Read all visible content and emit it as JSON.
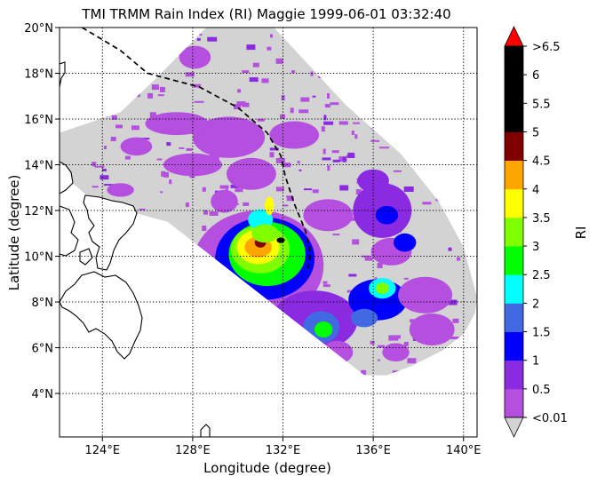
{
  "figure": {
    "title": "TMI TRMM Rain Index (RI) Maggie 1999-06-01 03:32:40",
    "xlabel": "Longitude (degree)",
    "ylabel": "Latitude (degree)",
    "colorbar_label": "RI"
  },
  "map": {
    "lon_range": [
      122.1,
      140.6
    ],
    "lat_range": [
      2.1,
      20.0
    ],
    "gridlines": "dotted",
    "x_ticks": [
      {
        "value": 124,
        "label": "124°E"
      },
      {
        "value": 128,
        "label": "128°E"
      },
      {
        "value": 132,
        "label": "132°E"
      },
      {
        "value": 136,
        "label": "136°E"
      },
      {
        "value": 140,
        "label": "140°E"
      }
    ],
    "y_ticks": [
      {
        "value": 4,
        "label": "4°N"
      },
      {
        "value": 6,
        "label": "6°N"
      },
      {
        "value": 8,
        "label": "8°N"
      },
      {
        "value": 10,
        "label": "10°N"
      },
      {
        "value": 12,
        "label": "12°N"
      },
      {
        "value": 14,
        "label": "14°N"
      },
      {
        "value": 16,
        "label": "16°N"
      },
      {
        "value": 18,
        "label": "18°N"
      },
      {
        "value": 20,
        "label": "20°N"
      }
    ],
    "swath_color": "#d3d3d3",
    "track": {
      "style": "dashed",
      "color": "#000000",
      "points": [
        [
          123.1,
          20.0
        ],
        [
          124.8,
          19.0
        ],
        [
          126.0,
          18.0
        ],
        [
          128.3,
          17.4
        ],
        [
          130.0,
          16.5
        ],
        [
          131.3,
          15.4
        ],
        [
          131.9,
          14.4
        ],
        [
          132.1,
          13.5
        ],
        [
          132.5,
          12.3
        ],
        [
          133.0,
          11.1
        ],
        [
          133.2,
          10.2
        ],
        [
          133.1,
          9.3
        ]
      ]
    }
  },
  "chart_data": {
    "type": "heatmap",
    "title": "TMI TRMM Rain Index (RI) Maggie 1999-06-01 03:32:40",
    "xlabel": "Longitude (degree)",
    "ylabel": "Latitude (degree)",
    "xlim": [
      122.1,
      140.6
    ],
    "ylim": [
      2.1,
      20.0
    ],
    "colorbar": {
      "label": "RI",
      "extend": "both",
      "levels": [
        "<0.01",
        "0.5",
        "1",
        "1.5",
        "2",
        "2.5",
        "3",
        "3.5",
        "4",
        "4.5",
        "5",
        "5.5",
        "6",
        ">6.5"
      ],
      "colors": [
        "#b44fdf",
        "#8a2be2",
        "#0000ff",
        "#4169e1",
        "#00ffff",
        "#00ff00",
        "#7fff00",
        "#ffff00",
        "#ffa500",
        "#800000",
        "#000000",
        "#000000",
        "#000000"
      ],
      "under_color": "#d3d3d3",
      "over_color": "#ff0000"
    },
    "swath_outline": [
      [
        122.1,
        15.4
      ],
      [
        124.8,
        16.3
      ],
      [
        126.4,
        17.8
      ],
      [
        127.8,
        19.2
      ],
      [
        128.6,
        20.0
      ],
      [
        131.6,
        20.0
      ],
      [
        133.3,
        18.2
      ],
      [
        134.8,
        16.6
      ],
      [
        137.2,
        14.5
      ],
      [
        138.9,
        12.4
      ],
      [
        140.0,
        10.4
      ],
      [
        140.6,
        8.2
      ],
      [
        140.5,
        7.5
      ],
      [
        140.0,
        6.6
      ],
      [
        139.1,
        5.9
      ],
      [
        137.7,
        5.2
      ],
      [
        136.6,
        4.8
      ],
      [
        135.6,
        4.8
      ],
      [
        126.9,
        11.5
      ],
      [
        124.7,
        12.1
      ],
      [
        123.5,
        12.5
      ],
      [
        122.1,
        13.7
      ]
    ],
    "rain_cells": [
      {
        "lon": 130.9,
        "lat": 9.6,
        "rlon": 2.9,
        "rlat": 2.4,
        "ri": 0.4
      },
      {
        "lon": 131.2,
        "lat": 9.9,
        "rlon": 2.2,
        "rlat": 1.8,
        "ri": 1.2
      },
      {
        "lon": 131.3,
        "lat": 10.1,
        "rlon": 1.7,
        "rlat": 1.4,
        "ri": 2.6
      },
      {
        "lon": 131.0,
        "lat": 10.3,
        "rlon": 1.3,
        "rlat": 1.05,
        "ri": 3.2
      },
      {
        "lon": 130.9,
        "lat": 10.4,
        "rlon": 0.95,
        "rlat": 0.75,
        "ri": 3.7
      },
      {
        "lon": 130.9,
        "lat": 10.4,
        "rlon": 0.6,
        "rlat": 0.45,
        "ri": 4.2
      },
      {
        "lon": 131.0,
        "lat": 10.6,
        "rlon": 0.25,
        "rlat": 0.22,
        "ri": 4.8
      },
      {
        "lon": 131.9,
        "lat": 10.7,
        "rlon": 0.18,
        "rlat": 0.12,
        "ri": 5.2
      },
      {
        "lon": 131.0,
        "lat": 11.6,
        "rlon": 0.55,
        "rlat": 0.45,
        "ri": 2.1
      },
      {
        "lon": 131.4,
        "lat": 12.2,
        "rlon": 0.2,
        "rlat": 0.4,
        "ri": 3.6
      },
      {
        "lon": 131.2,
        "lat": 11.0,
        "rlon": 0.6,
        "rlat": 0.4,
        "ri": 3.1
      },
      {
        "lon": 133.4,
        "lat": 7.2,
        "rlon": 1.9,
        "rlat": 1.3,
        "ri": 0.6
      },
      {
        "lon": 133.7,
        "lat": 6.9,
        "rlon": 0.8,
        "rlat": 0.7,
        "ri": 1.6
      },
      {
        "lon": 133.8,
        "lat": 6.8,
        "rlon": 0.4,
        "rlat": 0.35,
        "ri": 2.7
      },
      {
        "lon": 136.2,
        "lat": 8.1,
        "rlon": 1.3,
        "rlat": 0.9,
        "ri": 1.1
      },
      {
        "lon": 136.4,
        "lat": 8.6,
        "rlon": 0.6,
        "rlat": 0.45,
        "ri": 2.2
      },
      {
        "lon": 136.4,
        "lat": 8.6,
        "rlon": 0.3,
        "rlat": 0.25,
        "ri": 3.1
      },
      {
        "lon": 135.6,
        "lat": 7.3,
        "rlon": 0.6,
        "rlat": 0.4,
        "ri": 1.7
      },
      {
        "lon": 136.4,
        "lat": 12.0,
        "rlon": 1.3,
        "rlat": 1.2,
        "ri": 0.5
      },
      {
        "lon": 136.6,
        "lat": 11.8,
        "rlon": 0.5,
        "rlat": 0.4,
        "ri": 1.1
      },
      {
        "lon": 136.0,
        "lat": 13.3,
        "rlon": 0.7,
        "rlat": 0.5,
        "ri": 0.5
      },
      {
        "lon": 134.0,
        "lat": 11.8,
        "rlon": 1.1,
        "rlat": 0.7,
        "ri": 0.4
      },
      {
        "lon": 136.8,
        "lat": 10.2,
        "rlon": 0.9,
        "rlat": 0.6,
        "ri": 0.4
      },
      {
        "lon": 138.3,
        "lat": 8.3,
        "rlon": 1.2,
        "rlat": 0.8,
        "ri": 0.4
      },
      {
        "lon": 138.6,
        "lat": 6.8,
        "rlon": 1.0,
        "rlat": 0.7,
        "ri": 0.4
      },
      {
        "lon": 137.0,
        "lat": 5.8,
        "rlon": 0.6,
        "rlat": 0.4,
        "ri": 0.4
      },
      {
        "lon": 137.4,
        "lat": 10.6,
        "rlon": 0.5,
        "rlat": 0.4,
        "ri": 1.3
      },
      {
        "lon": 130.6,
        "lat": 13.6,
        "rlon": 1.1,
        "rlat": 0.7,
        "ri": 0.4
      },
      {
        "lon": 129.6,
        "lat": 15.2,
        "rlon": 1.6,
        "rlat": 0.9,
        "ri": 0.4
      },
      {
        "lon": 132.5,
        "lat": 15.3,
        "rlon": 1.1,
        "rlat": 0.6,
        "ri": 0.4
      },
      {
        "lon": 127.3,
        "lat": 15.8,
        "rlon": 1.4,
        "rlat": 0.5,
        "ri": 0.4
      },
      {
        "lon": 128.1,
        "lat": 18.7,
        "rlon": 0.7,
        "rlat": 0.5,
        "ri": 0.4
      },
      {
        "lon": 128.0,
        "lat": 14.0,
        "rlon": 1.3,
        "rlat": 0.5,
        "ri": 0.4
      },
      {
        "lon": 125.5,
        "lat": 14.8,
        "rlon": 0.7,
        "rlat": 0.4,
        "ri": 0.4
      },
      {
        "lon": 124.8,
        "lat": 12.9,
        "rlon": 0.6,
        "rlat": 0.3,
        "ri": 0.4
      },
      {
        "lon": 129.4,
        "lat": 12.4,
        "rlon": 0.6,
        "rlat": 0.5,
        "ri": 0.4
      },
      {
        "lon": 134.4,
        "lat": 5.8,
        "rlon": 0.7,
        "rlat": 0.5,
        "ri": 0.4
      }
    ],
    "speckle_region": {
      "lon": [
        123.5,
        140.0
      ],
      "lat": [
        5.0,
        19.8
      ],
      "count": 340
    }
  }
}
